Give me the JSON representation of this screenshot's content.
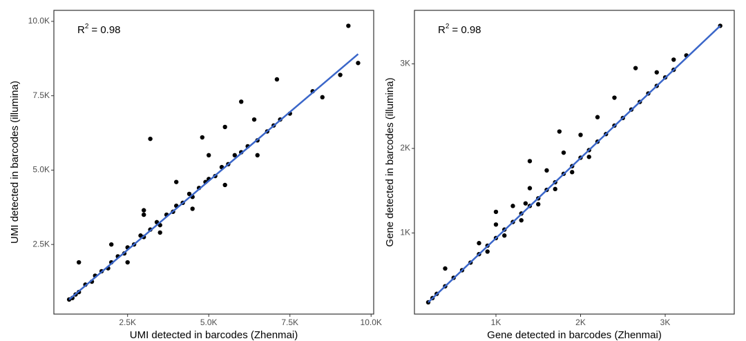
{
  "chart_data": [
    {
      "type": "scatter",
      "x_label": "UMI detected in barcodes (Zhenmai)",
      "y_label": "UMI detected in barcodes (illumina)",
      "annotation": {
        "base": "R",
        "sup": "2",
        "rest": "= 0.98"
      },
      "color": "#000000",
      "x": [
        700,
        800,
        900,
        1000,
        1200,
        1400,
        1500,
        1700,
        1900,
        2000,
        2200,
        2400,
        2500,
        2700,
        2900,
        3000,
        3200,
        3400,
        3500,
        3700,
        3900,
        4000,
        4200,
        4400,
        4500,
        4700,
        4900,
        5000,
        5200,
        5400,
        5600,
        5800,
        6000,
        6200,
        6500,
        6800,
        7000,
        7200,
        7500,
        2000,
        3000,
        4000,
        5000,
        6400,
        2500,
        3500,
        4500,
        5500,
        6500,
        9300,
        9600,
        9050,
        7100,
        8200,
        8500,
        5500,
        4800,
        3200,
        1000,
        3000,
        6000
      ],
      "values": [
        650,
        700,
        820,
        900,
        1150,
        1250,
        1450,
        1600,
        1700,
        1900,
        2100,
        2200,
        2400,
        2500,
        2800,
        2750,
        3000,
        3250,
        3150,
        3500,
        3600,
        3800,
        3900,
        4200,
        4100,
        4400,
        4600,
        4700,
        4800,
        5100,
        5200,
        5500,
        5600,
        5800,
        6000,
        6300,
        6500,
        6700,
        6900,
        2500,
        3500,
        4600,
        5500,
        6700,
        1900,
        2900,
        3700,
        4500,
        5500,
        9850,
        8600,
        8200,
        8050,
        7650,
        7450,
        6450,
        6100,
        6050,
        1900,
        3650,
        7300
      ],
      "fit": {
        "x": [
          700,
          9600
        ],
        "values": [
          650,
          8900
        ],
        "color": "#3a66c9"
      },
      "xlim": [
        230,
        10080
      ],
      "ylim": [
        160,
        10370
      ],
      "xticks": [
        {
          "value": 2500,
          "label": "2.5K"
        },
        {
          "value": 5000,
          "label": "5.0K"
        },
        {
          "value": 7500,
          "label": "7.5K"
        },
        {
          "value": 10000,
          "label": "10.0K"
        }
      ],
      "yticks": [
        {
          "value": 2500,
          "label": "2.5K"
        },
        {
          "value": 5000,
          "label": "5.0K"
        },
        {
          "value": 7500,
          "label": "7.5K"
        },
        {
          "value": 10000,
          "label": "10.0K"
        }
      ]
    },
    {
      "type": "scatter",
      "x_label": "Gene detected in barcodes (Zhenmai)",
      "y_label": "Gene detected in barcodes (illumina)",
      "annotation": {
        "base": "R",
        "sup": "2",
        "rest": "= 0.98"
      },
      "color": "#000000",
      "x": [
        200,
        250,
        300,
        400,
        500,
        600,
        700,
        800,
        900,
        1000,
        1100,
        1200,
        1300,
        1400,
        1500,
        1600,
        1700,
        1800,
        1900,
        2000,
        2100,
        2200,
        2300,
        2400,
        2500,
        2600,
        2700,
        2800,
        2900,
        3000,
        3100,
        800,
        1000,
        1200,
        1400,
        1600,
        1800,
        2000,
        2200,
        900,
        1100,
        1300,
        1500,
        1700,
        1900,
        2100,
        3650,
        3250,
        2650,
        3100,
        1400,
        1750,
        1350,
        1000,
        400,
        2400,
        2900
      ],
      "values": [
        180,
        230,
        280,
        370,
        470,
        560,
        650,
        750,
        850,
        940,
        1040,
        1130,
        1230,
        1320,
        1410,
        1510,
        1600,
        1700,
        1790,
        1890,
        1980,
        2080,
        2170,
        2270,
        2360,
        2460,
        2550,
        2650,
        2740,
        2840,
        2930,
        880,
        1100,
        1320,
        1530,
        1740,
        1950,
        2160,
        2370,
        780,
        970,
        1150,
        1340,
        1520,
        1720,
        1900,
        3450,
        3100,
        2950,
        3050,
        1850,
        2200,
        1350,
        1250,
        580,
        2600,
        2900
      ],
      "fit": {
        "x": [
          200,
          3650
        ],
        "values": [
          180,
          3450
        ],
        "color": "#3a66c9"
      },
      "xlim": [
        37,
        3816
      ],
      "ylim": [
        41,
        3633
      ],
      "xticks": [
        {
          "value": 1000,
          "label": "1K"
        },
        {
          "value": 2000,
          "label": "2K"
        },
        {
          "value": 3000,
          "label": "3K"
        }
      ],
      "yticks": [
        {
          "value": 1000,
          "label": "1K"
        },
        {
          "value": 2000,
          "label": "2K"
        },
        {
          "value": 3000,
          "label": "3K"
        }
      ]
    }
  ]
}
